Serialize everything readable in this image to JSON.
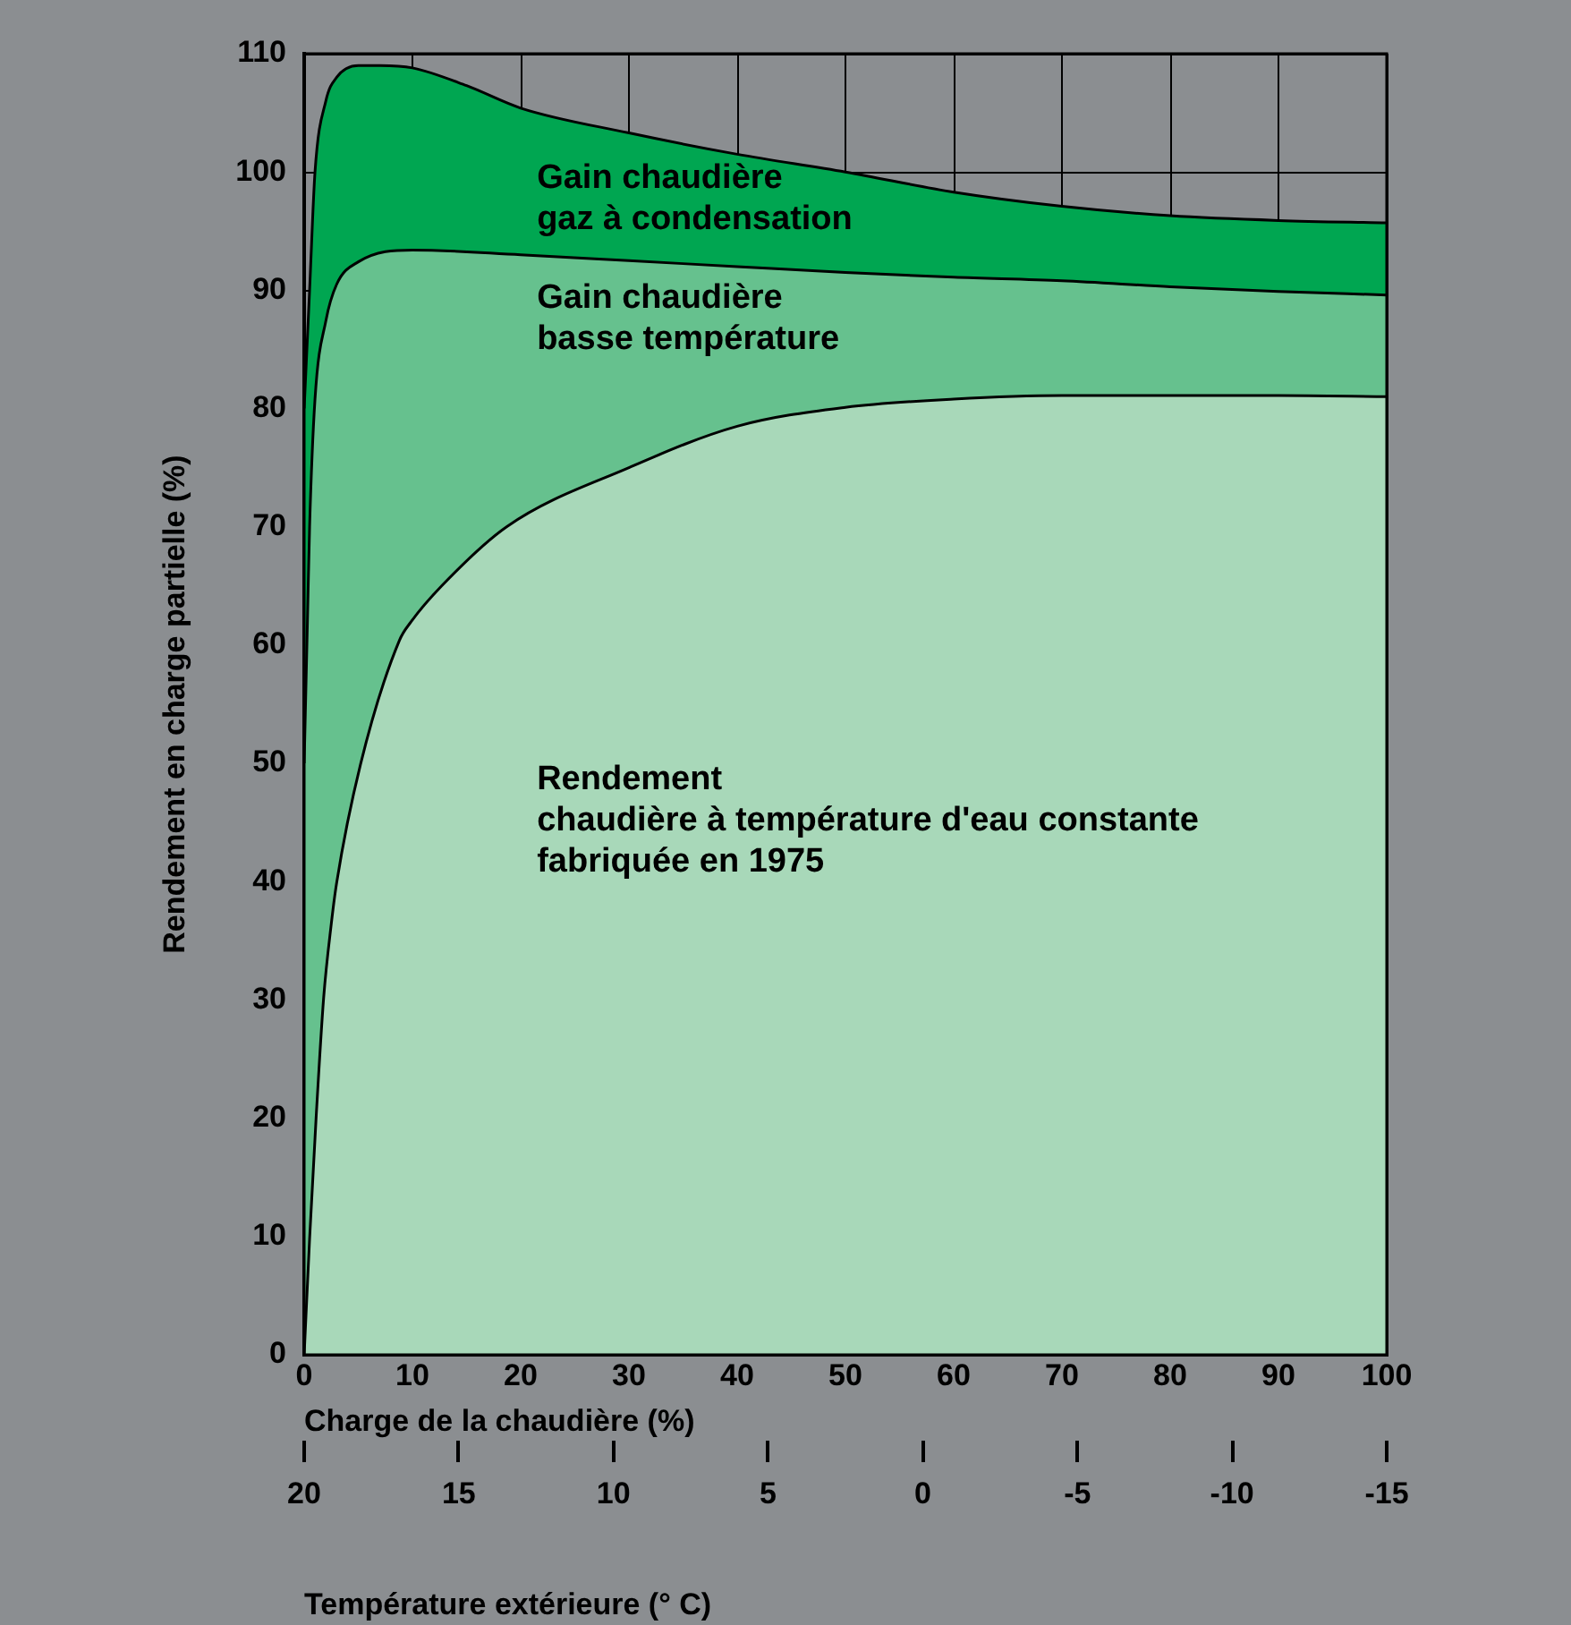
{
  "chart_data": {
    "type": "area",
    "xlabel": "Charge de la chaudière (%)",
    "ylabel": "Rendement en charge partielle (%)",
    "x2label": "Température extérieure (° C)",
    "xlim": [
      0,
      100
    ],
    "xticks": [
      0,
      10,
      20,
      30,
      40,
      50,
      60,
      70,
      80,
      90,
      100
    ],
    "ylim": [
      0,
      110
    ],
    "yticks": [
      0,
      10,
      20,
      30,
      40,
      50,
      60,
      70,
      80,
      90,
      100,
      110
    ],
    "x2lim": [
      20,
      -15
    ],
    "x2ticks": [
      20,
      15,
      10,
      5,
      0,
      -5,
      -10,
      -15
    ],
    "grid": true,
    "series": [
      {
        "color": "#00a651",
        "x": [
          0,
          0.5,
          1,
          2,
          3,
          5,
          7,
          10,
          15,
          20,
          30,
          40,
          50,
          60,
          70,
          80,
          90,
          100
        ],
        "values": [
          80,
          90,
          100,
          106,
          108,
          109,
          109,
          108.8,
          107.3,
          105.4,
          103.3,
          101.5,
          100,
          98.3,
          97.1,
          96.3,
          95.9,
          95.7
        ]
      },
      {
        "color": "#66c18e",
        "x": [
          0,
          0.3,
          0.5,
          1,
          2,
          3,
          5,
          10,
          20,
          30,
          40,
          50,
          60,
          70,
          80,
          90,
          100
        ],
        "values": [
          50,
          62,
          70,
          80.8,
          87.4,
          90.5,
          92.4,
          93.4,
          93,
          92.5,
          92,
          91.5,
          91.1,
          90.8,
          90.3,
          89.9,
          89.6
        ]
      },
      {
        "color": "#a8d8b9",
        "x": [
          0,
          0.5,
          1.1,
          1.8,
          2.5,
          3,
          5.2,
          8.8,
          9.9,
          12.7,
          18.7,
          30,
          40,
          50,
          60,
          70,
          80,
          90,
          100
        ],
        "values": [
          0,
          9.8,
          20,
          30.2,
          36.4,
          39.9,
          49.9,
          60.4,
          62,
          65,
          70,
          75,
          78.5,
          80.1,
          80.8,
          81.1,
          81.1,
          81.1,
          81
        ]
      }
    ],
    "annotations": [
      "Gain chaudière\ngaz à condensation",
      "Gain chaudière\nbasse température",
      "Rendement\nchaudière à température d'eau constante\nfabriquée en 1975"
    ]
  }
}
